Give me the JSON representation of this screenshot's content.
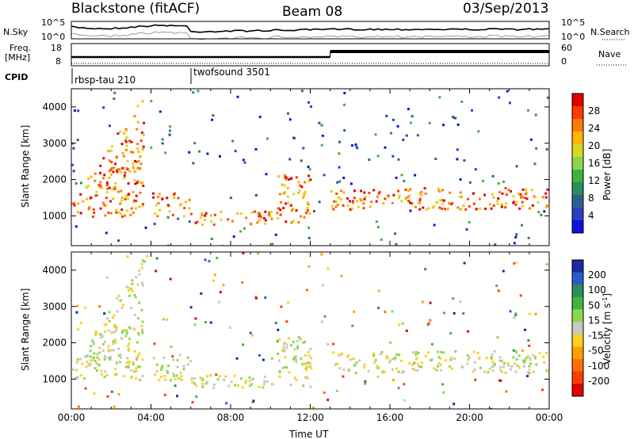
{
  "header": {
    "station": "Blackstone (fitACF)",
    "beam": "Beam 08",
    "date": "03/Sep/2013"
  },
  "top_panels": {
    "nsky_label": "N.Sky",
    "nsearch_label": "N.Search",
    "noise_ticks": [
      "10^5",
      "10^0"
    ],
    "freq_label_1": "Freq.",
    "freq_label_2": "[MHz]",
    "freq_ticks": [
      "18",
      "8"
    ],
    "nave_label": "Nave",
    "nave_ticks": [
      "60",
      "0"
    ],
    "cpid_label": "CPID",
    "cpid_programs": [
      {
        "name": "rbsp-tau 210",
        "start_hour": 0
      },
      {
        "name": "twofsound 3501",
        "start_hour": 6
      }
    ]
  },
  "colorbars": {
    "power": {
      "label": "Power [dB]",
      "ticks": [
        "28",
        "24",
        "20",
        "16",
        "12",
        "8",
        "4"
      ],
      "colors": [
        "#e00000",
        "#ff3a00",
        "#ff7a00",
        "#ffb400",
        "#d8d820",
        "#8cd650",
        "#3cb43c",
        "#2c8c5a",
        "#2c6090",
        "#2840c0",
        "#1010e0"
      ]
    },
    "velocity": {
      "label": "Velocity [m s",
      "label_sup": "-1",
      "label_end": "]",
      "ticks": [
        "200",
        "100",
        "50",
        "15",
        "-15",
        "-50",
        "-100",
        "-200"
      ],
      "colors": [
        "#1a2aa0",
        "#2a5cc8",
        "#2c8c5a",
        "#40b440",
        "#8cd84c",
        "#c8c8c0",
        "#ffd020",
        "#ffa000",
        "#ff7000",
        "#ff3c00",
        "#e00000"
      ]
    }
  },
  "chart_data": [
    {
      "type": "heatmap",
      "panel": "power",
      "ylabel": "Slant Range [km]",
      "x_range_hours": [
        0,
        24
      ],
      "y_range_km": [
        180,
        4500
      ],
      "y_ticks": [
        1000,
        2000,
        3000,
        4000
      ],
      "x_ticks": [
        "00:00",
        "04:00",
        "08:00",
        "12:00",
        "16:00",
        "20:00",
        "00:00"
      ],
      "colorbar": "Power [dB]",
      "echo_bands": [
        {
          "t0": 0.0,
          "t1": 3.6,
          "r0": 1000,
          "r1": 1750,
          "note": "arc rising"
        },
        {
          "t0": 4.0,
          "t1": 6.0,
          "r0": 1000,
          "r1": 1650
        },
        {
          "t0": 6.0,
          "t1": 10.3,
          "r0": 780,
          "r1": 1150
        },
        {
          "t0": 10.3,
          "t1": 12.0,
          "r0": 800,
          "r1": 2200
        },
        {
          "t0": 13.0,
          "t1": 24.0,
          "r0": 1200,
          "r1": 1800
        }
      ]
    },
    {
      "type": "heatmap",
      "panel": "velocity",
      "ylabel": "Slant Range [km]",
      "xlabel": "Time UT",
      "x_range_hours": [
        0,
        24
      ],
      "y_range_km": [
        180,
        4500
      ],
      "y_ticks": [
        1000,
        2000,
        3000,
        4000
      ],
      "x_ticks": [
        "00:00",
        "04:00",
        "08:00",
        "12:00",
        "16:00",
        "20:00",
        "00:00"
      ],
      "colorbar": "Velocity [m s-1]"
    }
  ]
}
